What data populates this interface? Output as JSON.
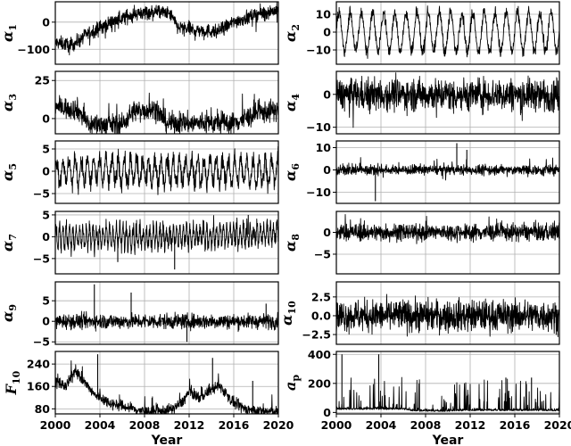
{
  "chart_data": {
    "type": "line",
    "layout": {
      "rows": 6,
      "cols": 2,
      "grid": true,
      "x_range": [
        2000,
        2020
      ],
      "sharex": true
    },
    "x_ticks": [
      2000,
      2004,
      2008,
      2012,
      2016,
      2020
    ],
    "xlabel": "Year",
    "panels": [
      {
        "id": "alpha1",
        "label": "α",
        "sub": "1",
        "col": 0,
        "row": 0,
        "ylim": [
          -155,
          75
        ],
        "yticks": [
          {
            "v": 0,
            "t": "0"
          },
          {
            "v": -100,
            "t": "−100"
          }
        ],
        "trend": [
          [
            2000,
            -75
          ],
          [
            2001.5,
            -85
          ],
          [
            2003,
            -40
          ],
          [
            2005,
            0
          ],
          [
            2007,
            30
          ],
          [
            2009,
            40
          ],
          [
            2010.3,
            30
          ],
          [
            2011,
            -20
          ],
          [
            2013,
            -30
          ],
          [
            2014.5,
            -35
          ],
          [
            2016,
            0
          ],
          [
            2018,
            30
          ],
          [
            2020,
            45
          ]
        ],
        "noise": 18,
        "spikes_down": 40,
        "spike_scale": 45
      },
      {
        "id": "alpha2",
        "label": "α",
        "sub": "2",
        "col": 1,
        "row": 0,
        "ylim": [
          -18,
          17
        ],
        "yticks": [
          {
            "v": 10,
            "t": "10"
          },
          {
            "v": 0,
            "t": "0"
          },
          {
            "v": -10,
            "t": "−10"
          }
        ],
        "trend": [
          [
            2000,
            0
          ],
          [
            2020,
            0
          ]
        ],
        "sine_amp": 11,
        "sine_period": 1.0,
        "noise": 2.5
      },
      {
        "id": "alpha3",
        "label": "α",
        "sub": "3",
        "col": 0,
        "row": 1,
        "ylim": [
          -10,
          31
        ],
        "yticks": [
          {
            "v": 25,
            "t": "25"
          },
          {
            "v": 0,
            "t": "0"
          }
        ],
        "trend": [
          [
            2000,
            8
          ],
          [
            2002,
            6
          ],
          [
            2003,
            -4
          ],
          [
            2006,
            -4
          ],
          [
            2007,
            5
          ],
          [
            2009,
            6
          ],
          [
            2010,
            -3
          ],
          [
            2016,
            -3
          ],
          [
            2018,
            3
          ],
          [
            2020,
            6
          ]
        ],
        "noise": 5,
        "spikes_up": 30,
        "spike_scale": 14
      },
      {
        "id": "alpha4",
        "label": "α",
        "sub": "4",
        "col": 1,
        "row": 1,
        "ylim": [
          -12,
          7
        ],
        "yticks": [
          {
            "v": 0,
            "t": "0"
          },
          {
            "v": -10,
            "t": "−10"
          }
        ],
        "trend": [
          [
            2000,
            0
          ],
          [
            2020,
            0
          ]
        ],
        "noise": 3.5,
        "spikes_down": 30,
        "spike_scale": 5
      },
      {
        "id": "alpha5",
        "label": "α",
        "sub": "5",
        "col": 0,
        "row": 2,
        "ylim": [
          -7.2,
          6.8
        ],
        "yticks": [
          {
            "v": 5,
            "t": "5"
          },
          {
            "v": 0,
            "t": "0"
          },
          {
            "v": -5,
            "t": "−5"
          }
        ],
        "trend": [
          [
            2000,
            0
          ],
          [
            2020,
            0
          ]
        ],
        "sine_amp": 2.8,
        "sine_period": 0.55,
        "noise": 1.6
      },
      {
        "id": "alpha6",
        "label": "α",
        "sub": "6",
        "col": 1,
        "row": 2,
        "ylim": [
          -15,
          13
        ],
        "yticks": [
          {
            "v": 10,
            "t": "10"
          },
          {
            "v": 0,
            "t": "0"
          },
          {
            "v": -10,
            "t": "−10"
          }
        ],
        "trend": [
          [
            2000,
            0
          ],
          [
            2020,
            0
          ]
        ],
        "noise": 1.6,
        "spikes_up": 15,
        "spikes_down": 10,
        "spike_scale": 6,
        "big_spikes": [
          [
            2003.5,
            -14
          ],
          [
            2010.8,
            12
          ],
          [
            2011.7,
            9
          ]
        ]
      },
      {
        "id": "alpha7",
        "label": "α",
        "sub": "7",
        "col": 0,
        "row": 3,
        "ylim": [
          -8.5,
          5.8
        ],
        "yticks": [
          {
            "v": 5,
            "t": "5"
          },
          {
            "v": 0,
            "t": "0"
          },
          {
            "v": -5,
            "t": "−5"
          }
        ],
        "trend": [
          [
            2000,
            0
          ],
          [
            2012,
            0
          ],
          [
            2020,
            0.8
          ]
        ],
        "sine_amp": 2.2,
        "sine_period": 0.3,
        "noise": 1.4,
        "big_spikes": [
          [
            2005.6,
            -5.8
          ],
          [
            2010.7,
            -7.5
          ],
          [
            2017.3,
            5
          ]
        ]
      },
      {
        "id": "alpha8",
        "label": "α",
        "sub": "8",
        "col": 1,
        "row": 3,
        "ylim": [
          -9.5,
          4.8
        ],
        "yticks": [
          {
            "v": 0,
            "t": "0"
          },
          {
            "v": -5,
            "t": "−5"
          }
        ],
        "trend": [
          [
            2000,
            0
          ],
          [
            2020,
            0
          ]
        ],
        "noise": 1.4,
        "spikes_up": 20,
        "spike_scale": 3
      },
      {
        "id": "alpha9",
        "label": "α",
        "sub": "9",
        "col": 0,
        "row": 4,
        "ylim": [
          -5.6,
          9.6
        ],
        "yticks": [
          {
            "v": 5,
            "t": "5"
          },
          {
            "v": 0,
            "t": "0"
          },
          {
            "v": -5,
            "t": "−5"
          }
        ],
        "trend": [
          [
            2000,
            0
          ],
          [
            2020,
            0
          ]
        ],
        "noise": 1.3,
        "big_spikes": [
          [
            2003.5,
            9
          ],
          [
            2006.8,
            7
          ],
          [
            2011.8,
            -5
          ],
          [
            2018.9,
            4.3
          ]
        ]
      },
      {
        "id": "alpha10",
        "label": "α",
        "sub": "10",
        "col": 1,
        "row": 4,
        "ylim": [
          -3.8,
          4.5
        ],
        "yticks": [
          {
            "v": 2.5,
            "t": "2.5"
          },
          {
            "v": 0,
            "t": "0.0"
          },
          {
            "v": -2.5,
            "t": "−2.5"
          }
        ],
        "trend": [
          [
            2000,
            0
          ],
          [
            2020,
            0
          ]
        ],
        "noise": 1.5
      },
      {
        "id": "f10",
        "label": "F",
        "sub": "10",
        "col": 0,
        "row": 5,
        "ylim": [
          62,
          285
        ],
        "yticks": [
          {
            "v": 240,
            "t": "240"
          },
          {
            "v": 160,
            "t": "160"
          },
          {
            "v": 80,
            "t": "80"
          }
        ],
        "trend": [
          [
            2000,
            175
          ],
          [
            2001,
            160
          ],
          [
            2001.8,
            220
          ],
          [
            2002.5,
            180
          ],
          [
            2003.5,
            130
          ],
          [
            2005,
            100
          ],
          [
            2006.5,
            85
          ],
          [
            2008,
            70
          ],
          [
            2009.5,
            70
          ],
          [
            2010.5,
            80
          ],
          [
            2011.3,
            100
          ],
          [
            2012,
            140
          ],
          [
            2013,
            120
          ],
          [
            2014,
            150
          ],
          [
            2014.8,
            160
          ],
          [
            2016,
            100
          ],
          [
            2017,
            80
          ],
          [
            2018,
            72
          ],
          [
            2020,
            70
          ]
        ],
        "noise": 14,
        "spikes_up": 18,
        "spike_scale": 60,
        "big_spikes": [
          [
            2003.8,
            275
          ],
          [
            2014.1,
            262
          ],
          [
            2017.7,
            180
          ]
        ]
      },
      {
        "id": "ap",
        "label": "a",
        "sub": "p",
        "col": 1,
        "row": 5,
        "ylim": [
          -10,
          420
        ],
        "yticks": [
          {
            "v": 400,
            "t": "400"
          },
          {
            "v": 200,
            "t": "200"
          },
          {
            "v": 0,
            "t": "0"
          }
        ],
        "trend": [
          [
            2000,
            20
          ],
          [
            2006,
            20
          ],
          [
            2007,
            8
          ],
          [
            2010,
            6
          ],
          [
            2012,
            12
          ],
          [
            2020,
            10
          ]
        ],
        "noise": 12,
        "positive": true,
        "spikes_up": 90,
        "spike_scale": 220,
        "big_spikes": [
          [
            2000.5,
            400
          ],
          [
            2003.8,
            400
          ],
          [
            2015.2,
            240
          ],
          [
            2017.5,
            240
          ]
        ]
      }
    ]
  }
}
